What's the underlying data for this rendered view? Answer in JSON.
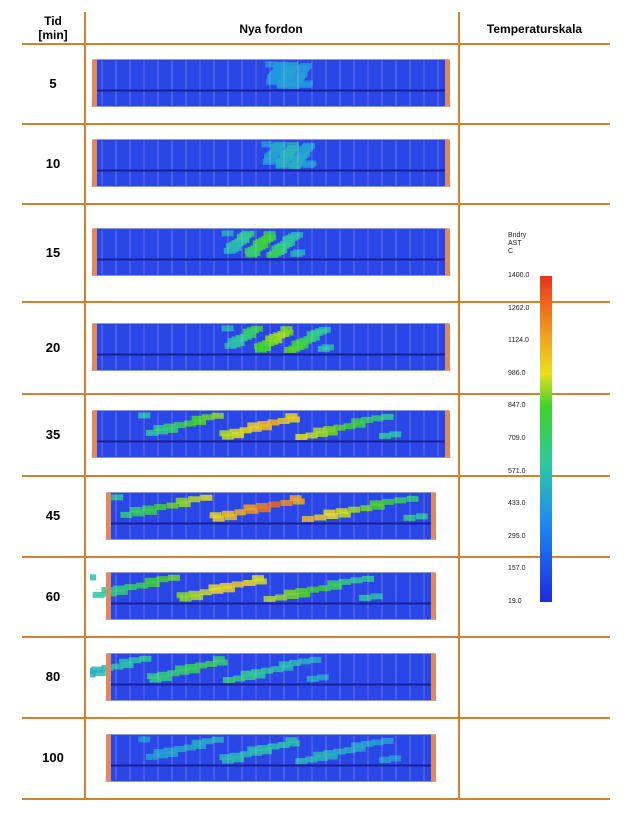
{
  "header": {
    "col_time": "Tid\n[min]",
    "col_vehicle": "Nya fordon",
    "col_scale": "Temperaturskala"
  },
  "rows": [
    {
      "time": "5",
      "hot": 0.08,
      "spread": 0.1,
      "center": 0.55
    },
    {
      "time": "10",
      "hot": 0.14,
      "spread": 0.12,
      "center": 0.55
    },
    {
      "time": "15",
      "hot": 0.35,
      "spread": 0.2,
      "center": 0.48
    },
    {
      "time": "20",
      "hot": 0.45,
      "spread": 0.28,
      "center": 0.52
    },
    {
      "time": "35",
      "hot": 0.6,
      "spread": 0.7,
      "center": 0.5
    },
    {
      "time": "45",
      "hot": 0.7,
      "spread": 0.85,
      "center": 0.5
    },
    {
      "time": "60",
      "hot": 0.55,
      "spread": 0.8,
      "center": 0.4
    },
    {
      "time": "80",
      "hot": 0.3,
      "spread": 0.7,
      "center": 0.3
    },
    {
      "time": "100",
      "hot": 0.18,
      "spread": 0.7,
      "center": 0.5
    }
  ],
  "scale": {
    "title_line1": "Bndry",
    "title_line2": "AST",
    "title_line3": "C",
    "ticks": [
      "1400.0",
      "1262.0",
      "1124.0",
      "986.0",
      "847.0",
      "709.0",
      "571.0",
      "433.0",
      "295.0",
      "157.0",
      "19.0"
    ],
    "colors": {
      "hot": "#e8331a",
      "warm": "#f0a020",
      "mid": "#3fd22a",
      "cool": "#1f8bf0",
      "cold": "#1d2be0"
    }
  }
}
